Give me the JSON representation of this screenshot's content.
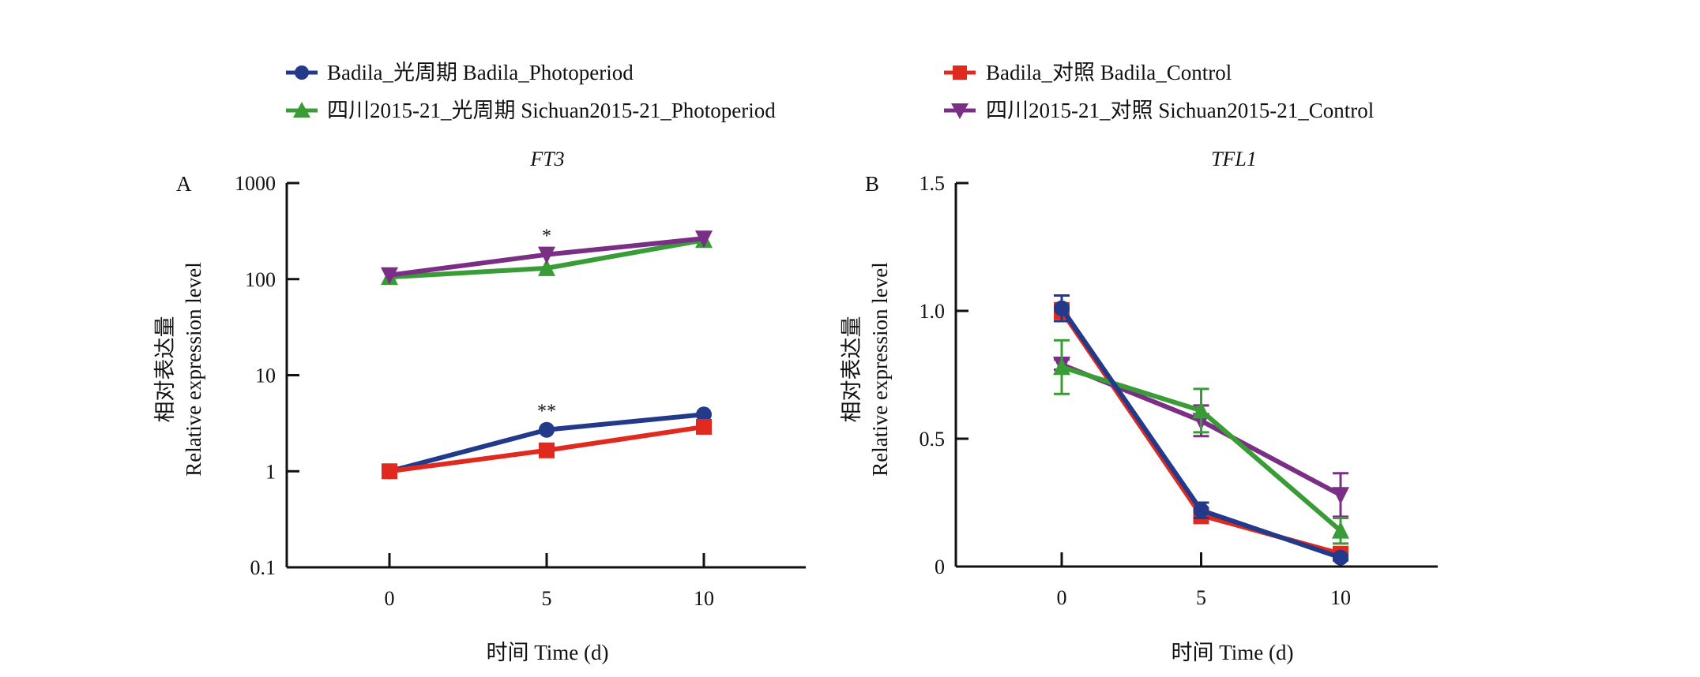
{
  "legend": {
    "items": [
      {
        "label": "Badila_光周期 Badila_Photoperiod",
        "series": "badila_photo",
        "marker": "circle",
        "color": "#233a8a",
        "position": "top-left"
      },
      {
        "label": "Badila_对照 Badila_Control",
        "series": "badila_ctrl",
        "marker": "square",
        "color": "#e02a1f",
        "position": "top-right"
      },
      {
        "label": "四川2015-21_光周期 Sichuan2015-21_Photoperiod",
        "series": "sichuan_photo",
        "marker": "triangle-up",
        "color": "#3a9c36",
        "position": "second-left"
      },
      {
        "label": "四川2015-21_对照 Sichuan2015-21_Control",
        "series": "sichuan_ctrl",
        "marker": "triangle-down",
        "color": "#7a2e85",
        "position": "second-right"
      }
    ]
  },
  "chart_data": [
    {
      "type": "line",
      "panel": "A",
      "title": "FT3",
      "xlabel": "时间 Time (d)",
      "ylabel_cn": "相对表达量",
      "ylabel": "Relative expression level",
      "yscale": "log",
      "ylim": [
        0.1,
        1000
      ],
      "yticks": [
        0.1,
        1,
        10,
        100,
        1000
      ],
      "ytick_labels": [
        "0.1",
        "1",
        "10",
        "100",
        "1000"
      ],
      "xlim": [
        -3.3,
        13.2
      ],
      "x": [
        0,
        5,
        10
      ],
      "xtick_labels": [
        "0",
        "5",
        "10"
      ],
      "grid": false,
      "series": [
        {
          "name": "Badila_Photoperiod",
          "key": "badila_photo",
          "values": [
            1.0,
            2.7,
            3.9
          ]
        },
        {
          "name": "Badila_Control",
          "key": "badila_ctrl",
          "values": [
            1.0,
            1.65,
            2.9
          ]
        },
        {
          "name": "Sichuan2015-21_Photoperiod",
          "key": "sichuan_photo",
          "values": [
            105,
            130,
            255
          ]
        },
        {
          "name": "Sichuan2015-21_Control",
          "key": "sichuan_ctrl",
          "values": [
            110,
            180,
            265
          ]
        }
      ],
      "annotations": [
        {
          "text": "*",
          "x": 5,
          "y": 180,
          "series": "sichuan_ctrl"
        },
        {
          "text": "**",
          "x": 5,
          "y": 2.7,
          "series": "badila_photo"
        }
      ]
    },
    {
      "type": "line",
      "panel": "B",
      "title": "TFL1",
      "xlabel": "时间 Time (d)",
      "ylabel_cn": "相对表达量",
      "ylabel": "Relative expression level",
      "yscale": "linear",
      "ylim": [
        0,
        1.5
      ],
      "yticks": [
        0,
        0.5,
        1.0,
        1.5
      ],
      "ytick_labels": [
        "0",
        "0.5",
        "1.0",
        "1.5"
      ],
      "xlim": [
        -3.7,
        13.4
      ],
      "x": [
        0,
        5,
        10
      ],
      "xtick_labels": [
        "0",
        "5",
        "10"
      ],
      "grid": false,
      "series": [
        {
          "name": "Badila_Control",
          "key": "badila_ctrl",
          "values": [
            1.0,
            0.2,
            0.05
          ],
          "err": [
            0.03,
            0.03,
            0.02
          ]
        },
        {
          "name": "Sichuan2015-21_Control",
          "key": "sichuan_ctrl",
          "values": [
            0.79,
            0.57,
            0.28
          ],
          "err": [
            0.02,
            0.06,
            0.085
          ]
        },
        {
          "name": "Sichuan2015-21_Photoperiod",
          "key": "sichuan_photo",
          "values": [
            0.78,
            0.61,
            0.14
          ],
          "err": [
            0.105,
            0.085,
            0.05
          ]
        },
        {
          "name": "Badila_Photoperiod",
          "key": "badila_photo",
          "values": [
            1.01,
            0.22,
            0.035
          ],
          "err": [
            0.05,
            0.03,
            0.01
          ]
        }
      ],
      "annotations": []
    }
  ]
}
